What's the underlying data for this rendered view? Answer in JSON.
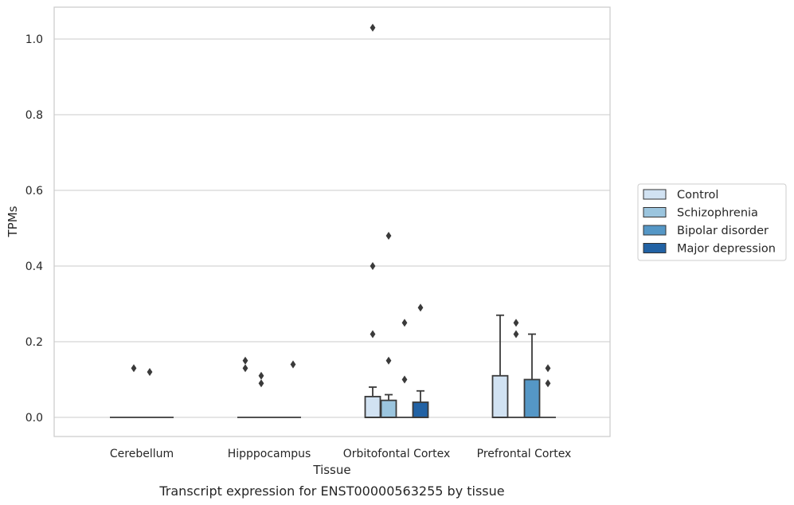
{
  "caption": "Transcript expression for ENST00000563255 by tissue",
  "chart_data": {
    "type": "box",
    "xlabel": "Tissue",
    "ylabel": "TPMs",
    "ylim": [
      -0.05,
      1.08
    ],
    "yticks": [
      "0.0",
      "0.2",
      "0.4",
      "0.6",
      "0.8",
      "1.0"
    ],
    "grid": "horizontal",
    "legend_position": "right",
    "categories": [
      "Cerebellum",
      "Hipppocampus",
      "Orbitofontal Cortex",
      "Prefrontal Cortex"
    ],
    "series": [
      {
        "name": "Control",
        "color": "#d1e2f2",
        "boxes": [
          {
            "q1": 0,
            "median": 0,
            "q3": 0,
            "whisker_low": 0,
            "whisker_high": 0,
            "outliers": []
          },
          {
            "q1": 0,
            "median": 0,
            "q3": 0,
            "whisker_low": 0,
            "whisker_high": 0,
            "outliers": [
              0.13,
              0.15
            ]
          },
          {
            "q1": 0,
            "median": 0,
            "q3": 0.055,
            "whisker_low": 0,
            "whisker_high": 0.08,
            "outliers": [
              0.22,
              0.4,
              1.03
            ]
          },
          {
            "q1": 0,
            "median": 0,
            "q3": 0.11,
            "whisker_low": 0,
            "whisker_high": 0.27,
            "outliers": []
          }
        ]
      },
      {
        "name": "Schizophrenia",
        "color": "#9bc5de",
        "boxes": [
          {
            "q1": 0,
            "median": 0,
            "q3": 0,
            "whisker_low": 0,
            "whisker_high": 0,
            "outliers": [
              0.13
            ]
          },
          {
            "q1": 0,
            "median": 0,
            "q3": 0,
            "whisker_low": 0,
            "whisker_high": 0,
            "outliers": [
              0.09,
              0.11
            ]
          },
          {
            "q1": 0,
            "median": 0,
            "q3": 0.045,
            "whisker_low": 0,
            "whisker_high": 0.06,
            "outliers": [
              0.15,
              0.48
            ]
          },
          {
            "q1": 0,
            "median": 0,
            "q3": 0,
            "whisker_low": 0,
            "whisker_high": 0,
            "outliers": [
              0.22,
              0.25
            ]
          }
        ]
      },
      {
        "name": "Bipolar disorder",
        "color": "#5597c6",
        "boxes": [
          {
            "q1": 0,
            "median": 0,
            "q3": 0,
            "whisker_low": 0,
            "whisker_high": 0,
            "outliers": [
              0.12
            ]
          },
          {
            "q1": 0,
            "median": 0,
            "q3": 0,
            "whisker_low": 0,
            "whisker_high": 0,
            "outliers": []
          },
          {
            "q1": 0,
            "median": 0,
            "q3": 0,
            "whisker_low": 0,
            "whisker_high": 0,
            "outliers": [
              0.1,
              0.25
            ]
          },
          {
            "q1": 0,
            "median": 0,
            "q3": 0.1,
            "whisker_low": 0,
            "whisker_high": 0.22,
            "outliers": []
          }
        ]
      },
      {
        "name": "Major depression",
        "color": "#2262a4",
        "boxes": [
          {
            "q1": 0,
            "median": 0,
            "q3": 0,
            "whisker_low": 0,
            "whisker_high": 0,
            "outliers": []
          },
          {
            "q1": 0,
            "median": 0,
            "q3": 0,
            "whisker_low": 0,
            "whisker_high": 0,
            "outliers": [
              0.14
            ]
          },
          {
            "q1": 0,
            "median": 0,
            "q3": 0.04,
            "whisker_low": 0,
            "whisker_high": 0.07,
            "outliers": [
              0.29
            ]
          },
          {
            "q1": 0,
            "median": 0,
            "q3": 0,
            "whisker_low": 0,
            "whisker_high": 0,
            "outliers": [
              0.09,
              0.13
            ]
          }
        ]
      }
    ]
  }
}
